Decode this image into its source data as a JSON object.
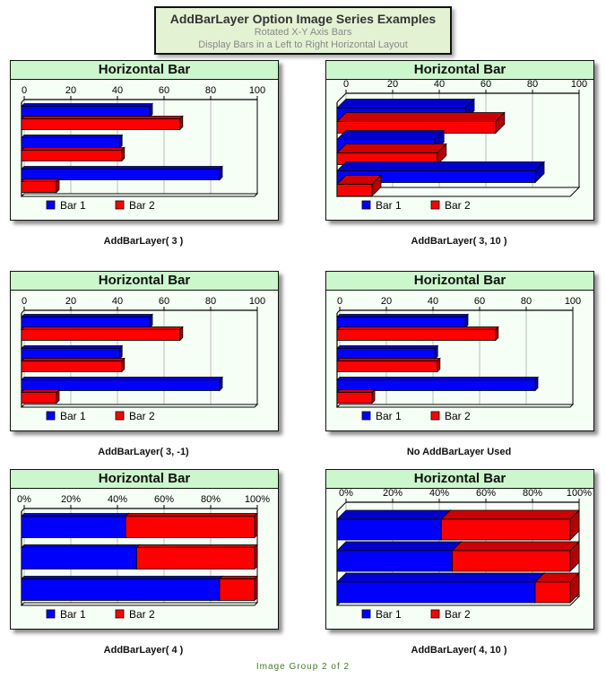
{
  "header": {
    "title": "AddBarLayer Option Image Series Examples",
    "subtitle1": "Rotated X-Y Axis Bars",
    "subtitle2": "Display Bars in a Left to Right Horizontal Layout"
  },
  "footer": "Image Group 2 of 2",
  "colors": {
    "bar1": "#0000ff",
    "bar2": "#ff0000",
    "panel_bg": "#f6fff6",
    "title_bg": "#ccf7cc"
  },
  "legend": [
    "Bar 1",
    "Bar 2"
  ],
  "chart_data": [
    {
      "type": "bar",
      "orientation": "horizontal",
      "mode": "grouped",
      "title": "Horizontal Bar",
      "caption": "AddBarLayer( 3 )",
      "depth": "small",
      "xlim": [
        0,
        100
      ],
      "ticks": [
        "0",
        "20",
        "40",
        "60",
        "80",
        "100"
      ],
      "legend_position": "bottom",
      "series": [
        {
          "name": "Bar 1",
          "values": [
            55,
            42,
            85
          ]
        },
        {
          "name": "Bar 2",
          "values": [
            68,
            43,
            15
          ]
        }
      ]
    },
    {
      "type": "bar",
      "orientation": "horizontal",
      "mode": "grouped",
      "title": "Horizontal Bar",
      "caption": "AddBarLayer( 3,  10 )",
      "depth": "large",
      "xlim": [
        0,
        100
      ],
      "ticks": [
        "0",
        "20",
        "40",
        "60",
        "80",
        "100"
      ],
      "legend_position": "bottom",
      "series": [
        {
          "name": "Bar 1",
          "values": [
            55,
            42,
            85
          ]
        },
        {
          "name": "Bar 2",
          "values": [
            68,
            43,
            15
          ]
        }
      ]
    },
    {
      "type": "bar",
      "orientation": "horizontal",
      "mode": "grouped",
      "title": "Horizontal Bar",
      "caption": "AddBarLayer( 3,  -1)",
      "depth": "small",
      "xlim": [
        0,
        100
      ],
      "ticks": [
        "0",
        "20",
        "40",
        "60",
        "80",
        "100"
      ],
      "legend_position": "bottom",
      "series": [
        {
          "name": "Bar 1",
          "values": [
            55,
            42,
            85
          ]
        },
        {
          "name": "Bar 2",
          "values": [
            68,
            43,
            15
          ]
        }
      ]
    },
    {
      "type": "bar",
      "orientation": "horizontal",
      "mode": "grouped",
      "title": "Horizontal Bar",
      "caption": "No AddBarLayer Used",
      "depth": "small",
      "xlim": [
        0,
        100
      ],
      "ticks": [
        "0",
        "20",
        "40",
        "60",
        "80",
        "100"
      ],
      "legend_position": "bottom",
      "series": [
        {
          "name": "Bar 1",
          "values": [
            55,
            42,
            85
          ]
        },
        {
          "name": "Bar 2",
          "values": [
            68,
            43,
            15
          ]
        }
      ]
    },
    {
      "type": "bar",
      "orientation": "horizontal",
      "mode": "percent-stacked",
      "title": "Horizontal Bar",
      "caption": "AddBarLayer( 4 )",
      "depth": "small",
      "xlim": [
        0,
        100
      ],
      "ticks": [
        "0%",
        "20%",
        "40%",
        "60%",
        "80%",
        "100%"
      ],
      "legend_position": "bottom",
      "series": [
        {
          "name": "Bar 1",
          "values": [
            55,
            42,
            85
          ]
        },
        {
          "name": "Bar 2",
          "values": [
            68,
            43,
            15
          ]
        }
      ]
    },
    {
      "type": "bar",
      "orientation": "horizontal",
      "mode": "percent-stacked",
      "title": "Horizontal Bar",
      "caption": "AddBarLayer( 4, 10 )",
      "depth": "large",
      "xlim": [
        0,
        100
      ],
      "ticks": [
        "0%",
        "20%",
        "40%",
        "60%",
        "80%",
        "100%"
      ],
      "legend_position": "bottom",
      "series": [
        {
          "name": "Bar 1",
          "values": [
            55,
            42,
            85
          ]
        },
        {
          "name": "Bar 2",
          "values": [
            68,
            43,
            15
          ]
        }
      ]
    }
  ]
}
